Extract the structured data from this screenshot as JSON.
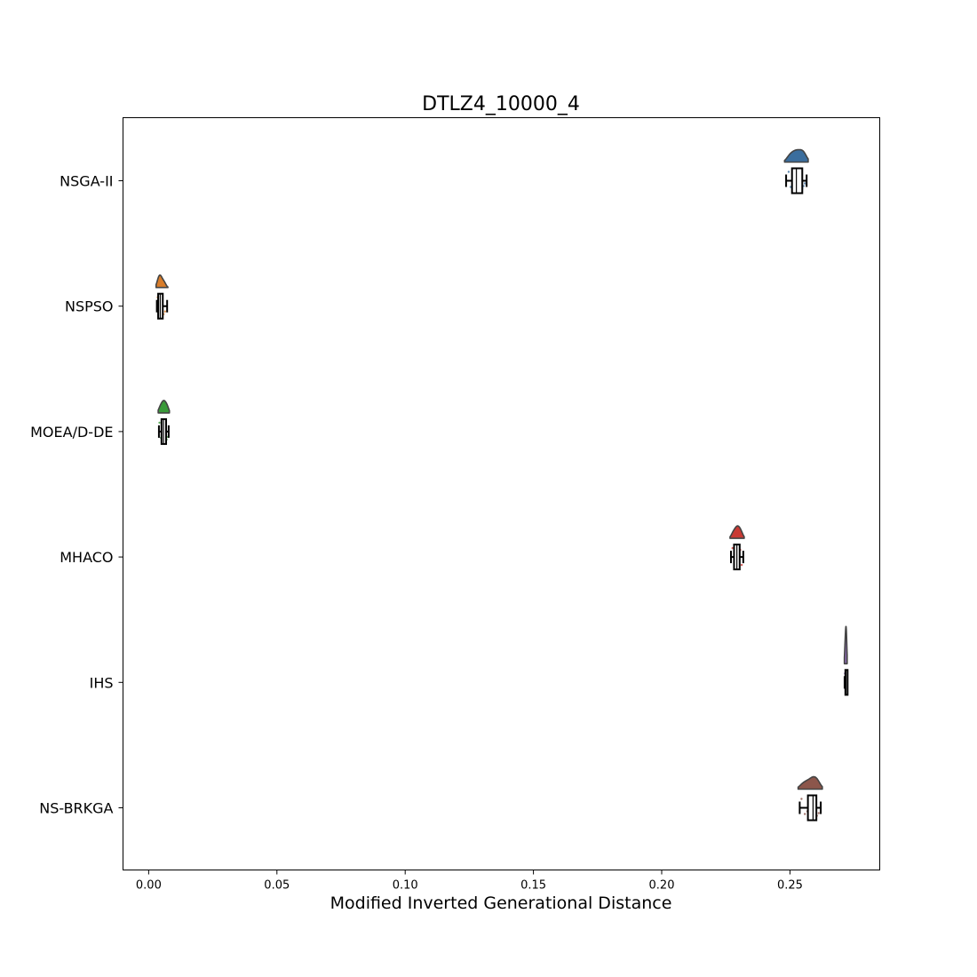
{
  "chart_data": {
    "type": "raincloud",
    "title": "DTLZ4_10000_4",
    "xlabel": "Modified Inverted Generational Distance",
    "ylabel": "",
    "xlim": [
      -0.01,
      0.285
    ],
    "xticks": [
      0.0,
      0.05,
      0.1,
      0.15,
      0.2,
      0.25
    ],
    "xtick_labels": [
      "0.00",
      "0.05",
      "0.10",
      "0.15",
      "0.20",
      "0.25"
    ],
    "grid": false,
    "series": [
      {
        "name": "NSGA-II",
        "color": "#3b6e9e",
        "min": 0.2485,
        "q1": 0.2508,
        "median": 0.2525,
        "q3": 0.2548,
        "max": 0.2565,
        "points": [
          0.2495,
          0.2503,
          0.2512,
          0.252,
          0.2526,
          0.2532,
          0.254,
          0.2548,
          0.2553,
          0.2558
        ]
      },
      {
        "name": "NSPSO",
        "color": "#d97d2a",
        "min": 0.0032,
        "q1": 0.0037,
        "median": 0.0045,
        "q3": 0.0055,
        "max": 0.0072,
        "points": [
          0.0035,
          0.0038,
          0.0041,
          0.0044,
          0.0046,
          0.0049,
          0.0053,
          0.0058,
          0.0064
        ]
      },
      {
        "name": "MOEA/D-DE",
        "color": "#3a9a3a",
        "min": 0.004,
        "q1": 0.005,
        "median": 0.0058,
        "q3": 0.0068,
        "max": 0.0078,
        "points": [
          0.0042,
          0.0048,
          0.0052,
          0.0056,
          0.0059,
          0.0062,
          0.0066,
          0.007,
          0.0075
        ]
      },
      {
        "name": "MHACO",
        "color": "#c93a34",
        "min": 0.227,
        "q1": 0.2282,
        "median": 0.2293,
        "q3": 0.2304,
        "max": 0.2318,
        "points": [
          0.2276,
          0.2283,
          0.2289,
          0.2293,
          0.2297,
          0.2301,
          0.2306,
          0.2312
        ]
      },
      {
        "name": "IHS",
        "color": "#8c6bb1",
        "min": 0.2713,
        "q1": 0.2716,
        "median": 0.2718,
        "q3": 0.272,
        "max": 0.2722,
        "points": [
          0.2714,
          0.2716,
          0.2717,
          0.2718,
          0.2719,
          0.272,
          0.2721
        ]
      },
      {
        "name": "NS-BRKGA",
        "color": "#8c564b",
        "min": 0.2538,
        "q1": 0.257,
        "median": 0.259,
        "q3": 0.2603,
        "max": 0.262,
        "points": [
          0.2545,
          0.2558,
          0.2568,
          0.2578,
          0.2586,
          0.2592,
          0.2598,
          0.2605,
          0.2612
        ]
      }
    ]
  }
}
